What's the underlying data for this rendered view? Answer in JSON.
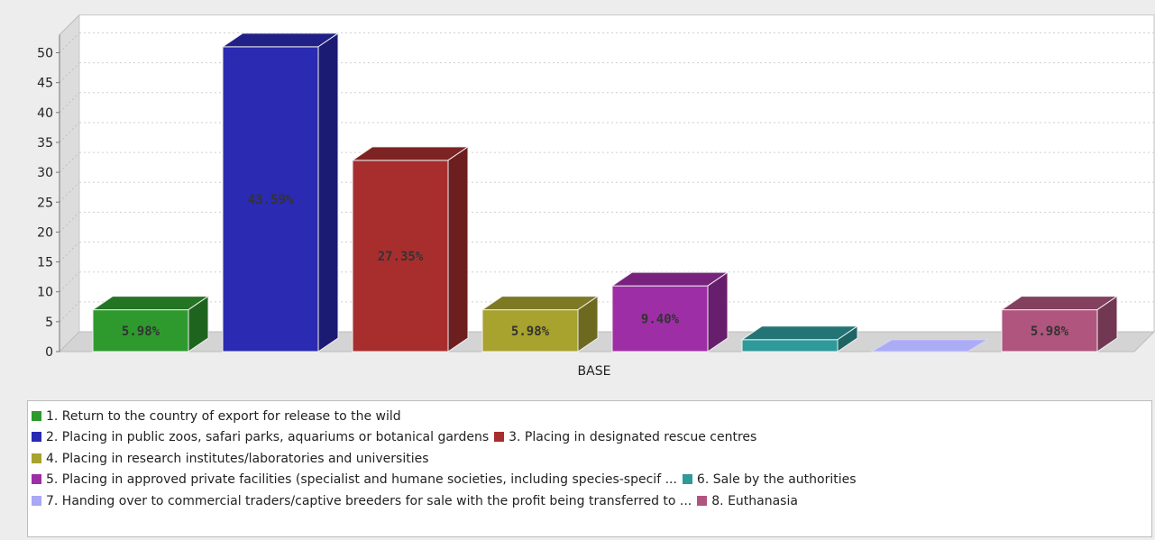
{
  "chart_data": {
    "type": "bar",
    "categories": [
      "BASE"
    ],
    "xlabel": "BASE",
    "ylabel": "",
    "ylim": [
      0,
      53
    ],
    "yticks": [
      0,
      5,
      10,
      15,
      20,
      25,
      30,
      35,
      40,
      45,
      50
    ],
    "grid": true,
    "legend_position": "bottom",
    "series": [
      {
        "name": "1. Return to the country of export for release to the wild",
        "value": 7,
        "label": "5.98%",
        "color": "#2e9a2e"
      },
      {
        "name": "2. Placing in public zoos, safari parks, aquariums or botanical gardens",
        "value": 51,
        "label": "43.59%",
        "color": "#2a2ab2"
      },
      {
        "name": "3. Placing in designated rescue centres",
        "value": 32,
        "label": "27.35%",
        "color": "#a82e2e"
      },
      {
        "name": "4. Placing in research institutes/laboratories and universities",
        "value": 7,
        "label": "5.98%",
        "color": "#a8a22e"
      },
      {
        "name": "5. Placing in approved private facilities (specialist and humane societies, including species-specif ...",
        "value": 11,
        "label": "9.40%",
        "color": "#9e2ea6"
      },
      {
        "name": "6. Sale by the authorities",
        "value": 2,
        "label": "",
        "color": "#2e9a9a"
      },
      {
        "name": "7. Handing over to commercial traders/captive breeders for sale with the profit being transferred to ...",
        "value": 0,
        "label": "",
        "color": "#a8a8f6"
      },
      {
        "name": "8. Euthanasia",
        "value": 7,
        "label": "5.98%",
        "color": "#b0557e"
      }
    ]
  },
  "legend_rows": [
    [
      0
    ],
    [
      1,
      2
    ],
    [
      3
    ],
    [
      4,
      5
    ],
    [
      6,
      7
    ]
  ]
}
